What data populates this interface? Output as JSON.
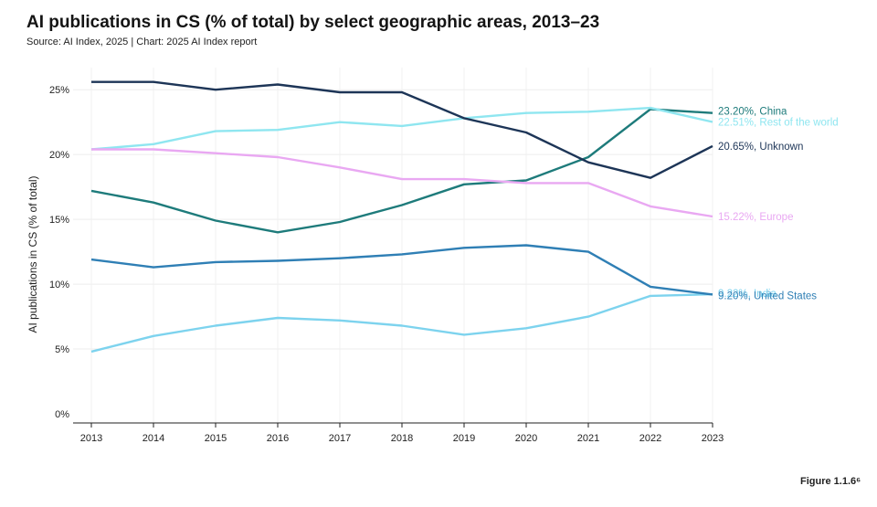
{
  "page": {
    "title": "AI publications in CS (% of total) by select geographic areas, 2013–23",
    "source": "Source: AI Index, 2025 | Chart: 2025 AI Index report",
    "figure_label": "Figure 1.1.6⁶"
  },
  "chart_data": {
    "type": "line",
    "title": "AI publications in CS (% of total) by select geographic areas, 2013–23",
    "xlabel": "",
    "ylabel": "AI publications in CS (% of total)",
    "x": [
      2013,
      2014,
      2015,
      2016,
      2017,
      2018,
      2019,
      2020,
      2021,
      2022,
      2023
    ],
    "y_ticks": [
      "0%",
      "5%",
      "10%",
      "15%",
      "20%",
      "25%"
    ],
    "y_tick_values": [
      0,
      5,
      10,
      15,
      20,
      25
    ],
    "ylim": [
      0,
      27
    ],
    "grid": true,
    "series": [
      {
        "name": "China",
        "end_label": "23.20%, China",
        "color": "#1e7b7b",
        "values": [
          17.2,
          16.3,
          14.9,
          14.0,
          14.8,
          16.1,
          17.7,
          18.0,
          19.8,
          23.5,
          23.2
        ]
      },
      {
        "name": "Rest of the world",
        "end_label": "22.51%, Rest of the world",
        "color": "#8fe6f0",
        "values": [
          20.4,
          20.8,
          21.8,
          21.9,
          22.5,
          22.2,
          22.8,
          23.2,
          23.3,
          23.6,
          22.51
        ]
      },
      {
        "name": "Unknown",
        "end_label": "20.65%, Unknown",
        "color": "#1d3557",
        "values": [
          25.6,
          25.6,
          25.0,
          25.4,
          24.8,
          24.8,
          22.8,
          21.7,
          19.4,
          18.2,
          20.65
        ]
      },
      {
        "name": "Europe",
        "end_label": "15.22%, Europe",
        "color": "#e9a8f2",
        "values": [
          20.4,
          20.4,
          20.1,
          19.8,
          19.0,
          18.1,
          18.1,
          17.8,
          17.8,
          16.0,
          15.22
        ]
      },
      {
        "name": "India",
        "end_label": "9.22%, India",
        "color": "#7dd3ee",
        "values": [
          4.8,
          6.0,
          6.8,
          7.4,
          7.2,
          6.8,
          6.1,
          6.6,
          7.5,
          9.1,
          9.22
        ]
      },
      {
        "name": "United States",
        "end_label": "9.20%, United States",
        "color": "#2f7fb5",
        "values": [
          11.9,
          11.3,
          11.7,
          11.8,
          12.0,
          12.3,
          12.8,
          13.0,
          12.5,
          9.8,
          9.2
        ]
      }
    ]
  }
}
